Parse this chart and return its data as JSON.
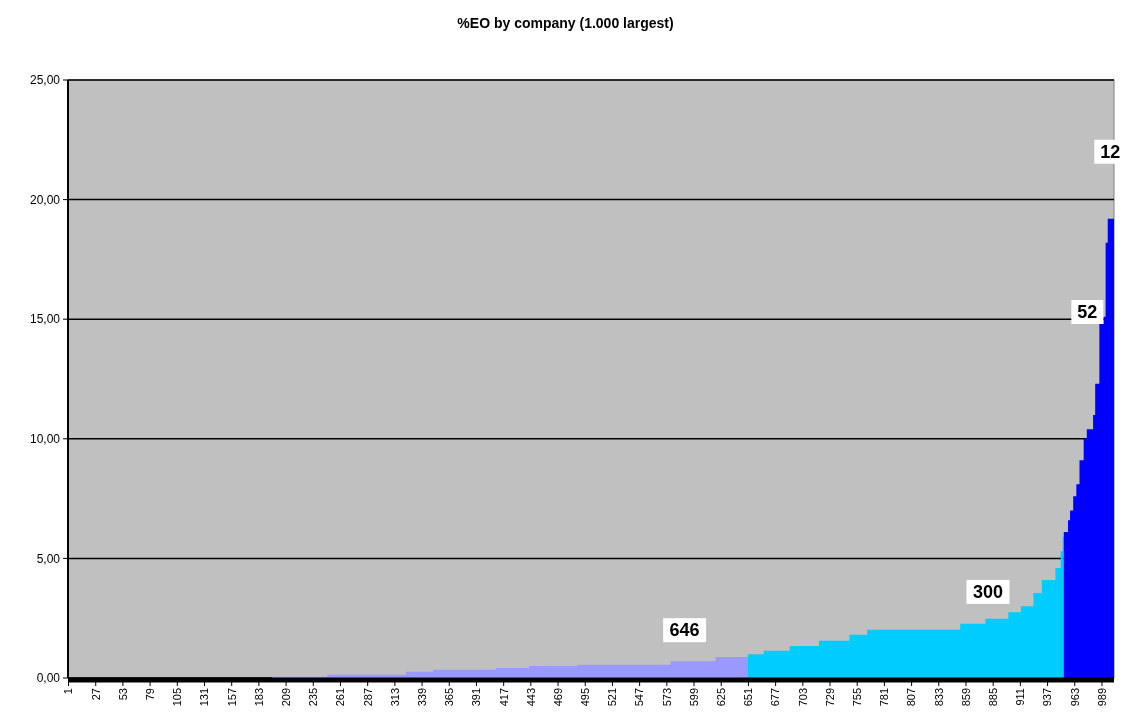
{
  "chart_data": {
    "type": "area",
    "title": "%EO by company (1.000 largest)",
    "xlim": [
      0.5,
      1000.5
    ],
    "xticks": [
      1,
      27,
      53,
      79,
      105,
      131,
      157,
      183,
      209,
      235,
      261,
      287,
      313,
      339,
      365,
      391,
      417,
      443,
      469,
      495,
      521,
      547,
      573,
      599,
      625,
      651,
      677,
      703,
      729,
      755,
      781,
      807,
      833,
      859,
      885,
      911,
      937,
      963,
      989
    ],
    "ylim": [
      0,
      25
    ],
    "yticks": [
      {
        "value": 0,
        "label": "0,00"
      },
      {
        "value": 5,
        "label": "5,00"
      },
      {
        "value": 10,
        "label": "10,00"
      },
      {
        "value": 15,
        "label": "15,00"
      },
      {
        "value": 20,
        "label": "20,00"
      },
      {
        "value": 25,
        "label": "25,00"
      }
    ],
    "grid": "y",
    "series": [
      {
        "color": "#9999ff",
        "x": [
          1,
          195,
          196,
          249,
          324,
          350,
          410,
          442,
          488,
          577,
          620,
          650
        ],
        "values": [
          0,
          0,
          0.05,
          0.14,
          0.26,
          0.34,
          0.42,
          0.5,
          0.55,
          0.7,
          0.88,
          0.88
        ]
      },
      {
        "color": "#00ccff",
        "x": [
          651,
          666,
          691,
          719,
          748,
          765,
          854,
          878,
          900,
          912,
          924,
          932,
          945,
          950,
          952
        ],
        "values": [
          0.99,
          1.14,
          1.34,
          1.56,
          1.81,
          2.02,
          2.27,
          2.48,
          2.75,
          3.0,
          3.55,
          4.1,
          4.6,
          5.3,
          5.9
        ]
      },
      {
        "color": "#0000ff",
        "x": [
          953,
          957,
          959,
          962,
          965,
          968,
          972,
          975,
          981,
          983,
          987,
          991,
          993,
          995,
          1000
        ],
        "values": [
          6.1,
          6.6,
          7.0,
          7.6,
          8.1,
          9.1,
          10.0,
          10.4,
          11.0,
          12.3,
          14.8,
          15.1,
          18.2,
          19.2,
          19.2
        ]
      }
    ],
    "annotations": [
      {
        "text": "646",
        "x": 590,
        "y": 2.0
      },
      {
        "text": "300",
        "x": 880,
        "y": 3.6
      },
      {
        "text": "52",
        "x": 975,
        "y": 15.3
      },
      {
        "text": "12",
        "x": 997,
        "y": 22
      }
    ]
  }
}
